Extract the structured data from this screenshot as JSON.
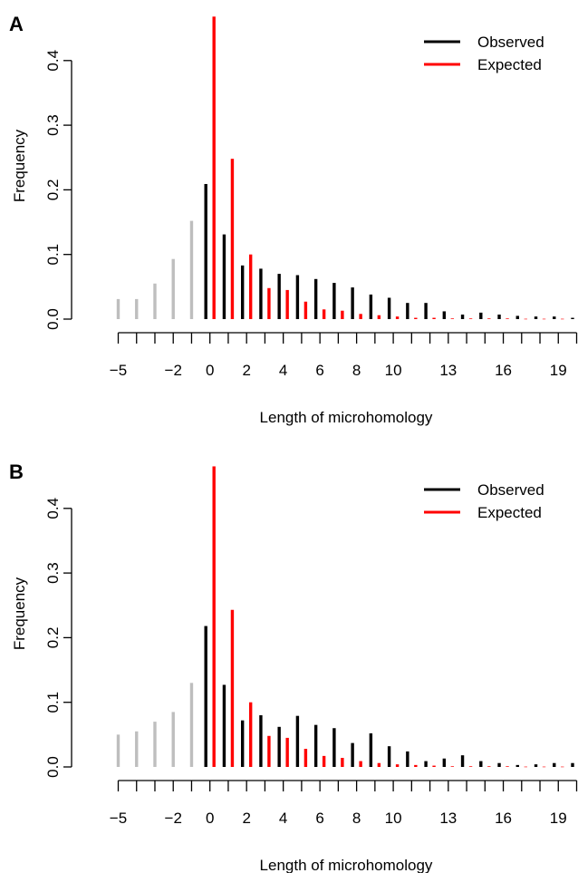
{
  "chart_data": [
    {
      "type": "bar",
      "panel_label": "A",
      "xlabel": "Length of microhomology",
      "ylabel": "Frequency",
      "ylim": [
        0,
        0.47
      ],
      "yticks": [
        "0.0",
        "0.1",
        "0.2",
        "0.3",
        "0.4"
      ],
      "xticks": [
        "−5",
        "−2",
        "0",
        "2",
        "4",
        "6",
        "8",
        "10",
        "13",
        "16",
        "19"
      ],
      "legend": {
        "position": "top-right",
        "entries": [
          {
            "label": "Observed",
            "color": "#000000"
          },
          {
            "label": "Expected",
            "color": "#ff0000"
          }
        ]
      },
      "x": [
        -5,
        -4,
        -3,
        -2,
        -1,
        0,
        1,
        2,
        3,
        4,
        5,
        6,
        7,
        8,
        9,
        10,
        11,
        12,
        13,
        14,
        15,
        16,
        17,
        18,
        19,
        20
      ],
      "series": [
        {
          "name": "Observed",
          "color": "#000000",
          "negative_color": "#bebebe",
          "values": [
            0.031,
            0.031,
            0.055,
            0.093,
            0.152,
            0.209,
            0.131,
            0.083,
            0.078,
            0.07,
            0.068,
            0.062,
            0.056,
            0.049,
            0.038,
            0.033,
            0.025,
            0.025,
            0.012,
            0.007,
            0.01,
            0.007,
            0.005,
            0.004,
            0.004,
            0.002
          ]
        },
        {
          "name": "Expected",
          "color": "#ff0000",
          "values": [
            null,
            null,
            null,
            null,
            null,
            0.468,
            0.248,
            0.1,
            0.048,
            0.045,
            0.027,
            0.015,
            0.013,
            0.008,
            0.006,
            0.004,
            0.002,
            0.002,
            0.001,
            0.001,
            0.001,
            0.001,
            0.0005,
            0.0005,
            0.0005,
            0.0005
          ]
        }
      ]
    },
    {
      "type": "bar",
      "panel_label": "B",
      "xlabel": "Length of microhomology",
      "ylabel": "Frequency",
      "ylim": [
        0,
        0.47
      ],
      "yticks": [
        "0.0",
        "0.1",
        "0.2",
        "0.3",
        "0.4"
      ],
      "xticks": [
        "−5",
        "−2",
        "0",
        "2",
        "4",
        "6",
        "8",
        "10",
        "13",
        "16",
        "19"
      ],
      "legend": {
        "position": "top-right",
        "entries": [
          {
            "label": "Observed",
            "color": "#000000"
          },
          {
            "label": "Expected",
            "color": "#ff0000"
          }
        ]
      },
      "x": [
        -5,
        -4,
        -3,
        -2,
        -1,
        0,
        1,
        2,
        3,
        4,
        5,
        6,
        7,
        8,
        9,
        10,
        11,
        12,
        13,
        14,
        15,
        16,
        17,
        18,
        19,
        20
      ],
      "series": [
        {
          "name": "Observed",
          "color": "#000000",
          "negative_color": "#bebebe",
          "values": [
            0.05,
            0.055,
            0.07,
            0.085,
            0.13,
            0.218,
            0.127,
            0.072,
            0.08,
            0.062,
            0.079,
            0.065,
            0.06,
            0.037,
            0.052,
            0.032,
            0.024,
            0.009,
            0.013,
            0.018,
            0.009,
            0.006,
            0.003,
            0.004,
            0.006,
            0.006
          ]
        },
        {
          "name": "Expected",
          "color": "#ff0000",
          "values": [
            null,
            null,
            null,
            null,
            null,
            0.465,
            0.243,
            0.1,
            0.048,
            0.045,
            0.028,
            0.017,
            0.014,
            0.009,
            0.006,
            0.004,
            0.003,
            0.002,
            0.001,
            0.001,
            0.001,
            0.001,
            0.0005,
            0.0005,
            0.0005,
            0.0005
          ]
        }
      ]
    }
  ]
}
